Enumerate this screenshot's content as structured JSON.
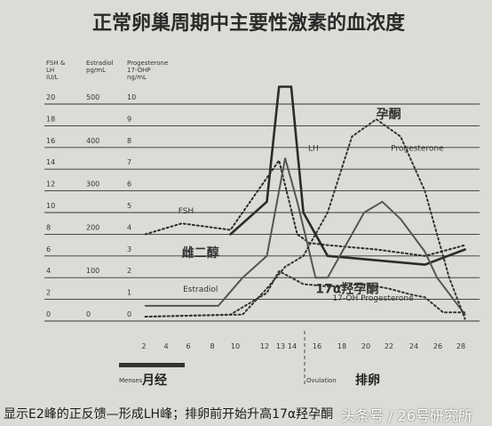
{
  "chart_data": {
    "type": "line",
    "title": "正常卵巢周期中主要性激素的血浓度",
    "axes_headers": [
      {
        "name": "fsh",
        "lines": [
          "FSH &",
          "LH",
          "IU/L"
        ]
      },
      {
        "name": "estradiol",
        "lines": [
          "Estradiol",
          "pg/mL"
        ]
      },
      {
        "name": "progesterone",
        "lines": [
          "Progesterone",
          "17-OHP",
          "ng/mL"
        ]
      }
    ],
    "y_tick_columns": [
      {
        "name": "fsh",
        "ticks": [
          "20",
          "18",
          "16",
          "14",
          "12",
          "10",
          "8",
          "6",
          "4",
          "2",
          "0"
        ]
      },
      {
        "name": "estradiol",
        "ticks": [
          "500",
          "",
          "400",
          "",
          "300",
          "",
          "200",
          "",
          "100",
          "",
          "0"
        ]
      },
      {
        "name": "progesterone",
        "ticks": [
          "10",
          "9",
          "8",
          "7",
          "6",
          "5",
          "4",
          "3",
          "2",
          "1",
          "0"
        ]
      }
    ],
    "y_range": [
      0,
      10
    ],
    "x": [
      2,
      4,
      6,
      8,
      10,
      12,
      14,
      16,
      18,
      20,
      22,
      24,
      26,
      28
    ],
    "x_ticks": [
      "2",
      "4",
      "6",
      "8",
      "10",
      "12",
      "13",
      "14",
      "16",
      "18",
      "20",
      "22",
      "24",
      "26",
      "28"
    ],
    "x_range": [
      1,
      29.5
    ],
    "grid": "horizontal",
    "series": [
      {
        "name": "LH",
        "style": "solid-thick",
        "color": "#2b2b2b",
        "points": [
          [
            9,
            4
          ],
          [
            12,
            5.5
          ],
          [
            13,
            10.8
          ],
          [
            14,
            10.8
          ],
          [
            15,
            5
          ],
          [
            17,
            3
          ],
          [
            19,
            2.9
          ],
          [
            25,
            2.6
          ],
          [
            28.3,
            3.3
          ]
        ]
      },
      {
        "name": "FSH",
        "style": "dotted",
        "color": "#2b2b2b",
        "points": [
          [
            2,
            4
          ],
          [
            5,
            4.5
          ],
          [
            9,
            4.2
          ],
          [
            13,
            7.4
          ],
          [
            14.5,
            4
          ],
          [
            15.5,
            3.6
          ],
          [
            17,
            3.5
          ],
          [
            21,
            3.3
          ],
          [
            25,
            3
          ],
          [
            27,
            3.3
          ],
          [
            28.3,
            3.5
          ]
        ]
      },
      {
        "name": "雌二醇 Estradiol",
        "style": "solid",
        "color": "#555555",
        "points": [
          [
            2,
            0.7
          ],
          [
            8,
            0.7
          ],
          [
            10,
            2
          ],
          [
            12,
            3
          ],
          [
            13.5,
            7.5
          ],
          [
            14.5,
            5.5
          ],
          [
            16,
            2
          ],
          [
            17,
            2
          ],
          [
            20,
            5
          ],
          [
            21.5,
            5.5
          ],
          [
            23,
            4.7
          ],
          [
            25,
            3.2
          ],
          [
            26,
            2
          ],
          [
            28.3,
            0.3
          ]
        ]
      },
      {
        "name": "孕酮 Progesterone",
        "style": "dotted",
        "color": "#333333",
        "points": [
          [
            2,
            0.2
          ],
          [
            10,
            0.3
          ],
          [
            12,
            1.5
          ],
          [
            13.5,
            2.5
          ],
          [
            15,
            3
          ],
          [
            17,
            5
          ],
          [
            19,
            8.5
          ],
          [
            21,
            9.3
          ],
          [
            23,
            8.5
          ],
          [
            25,
            6
          ],
          [
            27,
            2
          ],
          [
            28.3,
            0.1
          ]
        ]
      },
      {
        "name": "17α羟孕酮 17-OHP",
        "style": "dotted",
        "color": "#333333",
        "points": [
          [
            2,
            0.2
          ],
          [
            9,
            0.3
          ],
          [
            12,
            1.3
          ],
          [
            13,
            2.3
          ],
          [
            14,
            2
          ],
          [
            15,
            1.7
          ],
          [
            17,
            1.6
          ],
          [
            20,
            1.7
          ],
          [
            22,
            1.5
          ],
          [
            24,
            1.2
          ],
          [
            25,
            1.1
          ],
          [
            26.5,
            0.4
          ],
          [
            28.3,
            0.4
          ]
        ]
      }
    ],
    "annotations": [
      {
        "name": "lh-label",
        "text": "LH",
        "x": 15.4,
        "y": 7.85,
        "size": 9
      },
      {
        "name": "fsh-label",
        "text": "FSH",
        "x": 4.7,
        "y": 4.95,
        "size": 9
      },
      {
        "name": "progesterone-label",
        "text": "Progesterone",
        "x": 22.2,
        "y": 7.85,
        "size": 9
      },
      {
        "name": "progesterone-cn-label",
        "text": "孕酮",
        "x": 21,
        "y": 9.35,
        "size": 14,
        "weight": "bold"
      },
      {
        "name": "estradiol-cn-label",
        "text": "雌二醇",
        "x": 5,
        "y": 2.95,
        "size": 14,
        "weight": "bold"
      },
      {
        "name": "estradiol-label",
        "text": "Estradiol",
        "x": 5.1,
        "y": 1.35,
        "size": 9
      },
      {
        "name": "ohp-cn-label",
        "text": "17α羟孕酮",
        "x": 16,
        "y": 1.3,
        "size": 14,
        "weight": "bold"
      },
      {
        "name": "ohp-label",
        "text": "17-OH Progesterone",
        "x": 17.4,
        "y": 0.95,
        "size": 9
      }
    ],
    "phases": [
      {
        "name": "menses",
        "label_en": "Menses",
        "label_cn": "月经",
        "x_start": 2,
        "x_end": 6.5
      },
      {
        "name": "ovulation",
        "label_en": "Ovulation",
        "label_cn": "排卵",
        "x_start": 15.5,
        "x_end": 20
      }
    ]
  },
  "caption": {
    "text": "显示E2峰的正反馈—形成LH峰；排卵前开始升高17α羟孕酮",
    "watermark": "头条号 / 26号研究所"
  }
}
